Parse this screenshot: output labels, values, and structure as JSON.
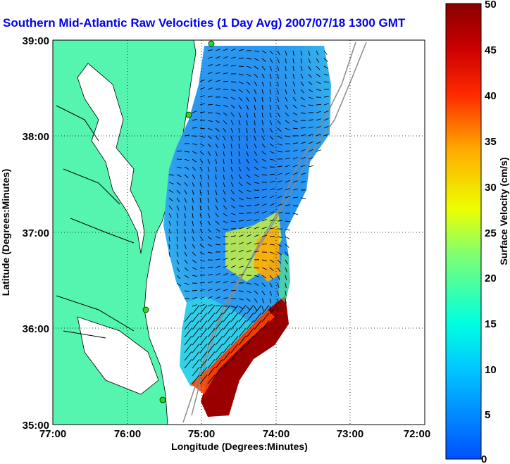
{
  "title": "Southern Mid-Atlantic Raw Velocities (1 Day Avg) 2007/07/18 1300 GMT",
  "x_axis": {
    "label": "Longitude (Degrees:Minutes)",
    "ticks": [
      "77:00",
      "76:00",
      "75:00",
      "74:00",
      "73:00",
      "72:00"
    ]
  },
  "y_axis": {
    "label": "Latitude (Degrees:Minutes)",
    "ticks": [
      "39:00",
      "38:00",
      "37:00",
      "36:00",
      "35:00"
    ]
  },
  "colorbar": {
    "label": "Surface Velocity (cm/s)",
    "ticks": [
      "50",
      "45",
      "40",
      "35",
      "30",
      "25",
      "20",
      "15",
      "10",
      "5",
      "0"
    ],
    "min": 0,
    "max": 50
  },
  "colors": {
    "land": "#55f5b0",
    "title": "#0000ee",
    "ocean": "#ffffff"
  }
}
